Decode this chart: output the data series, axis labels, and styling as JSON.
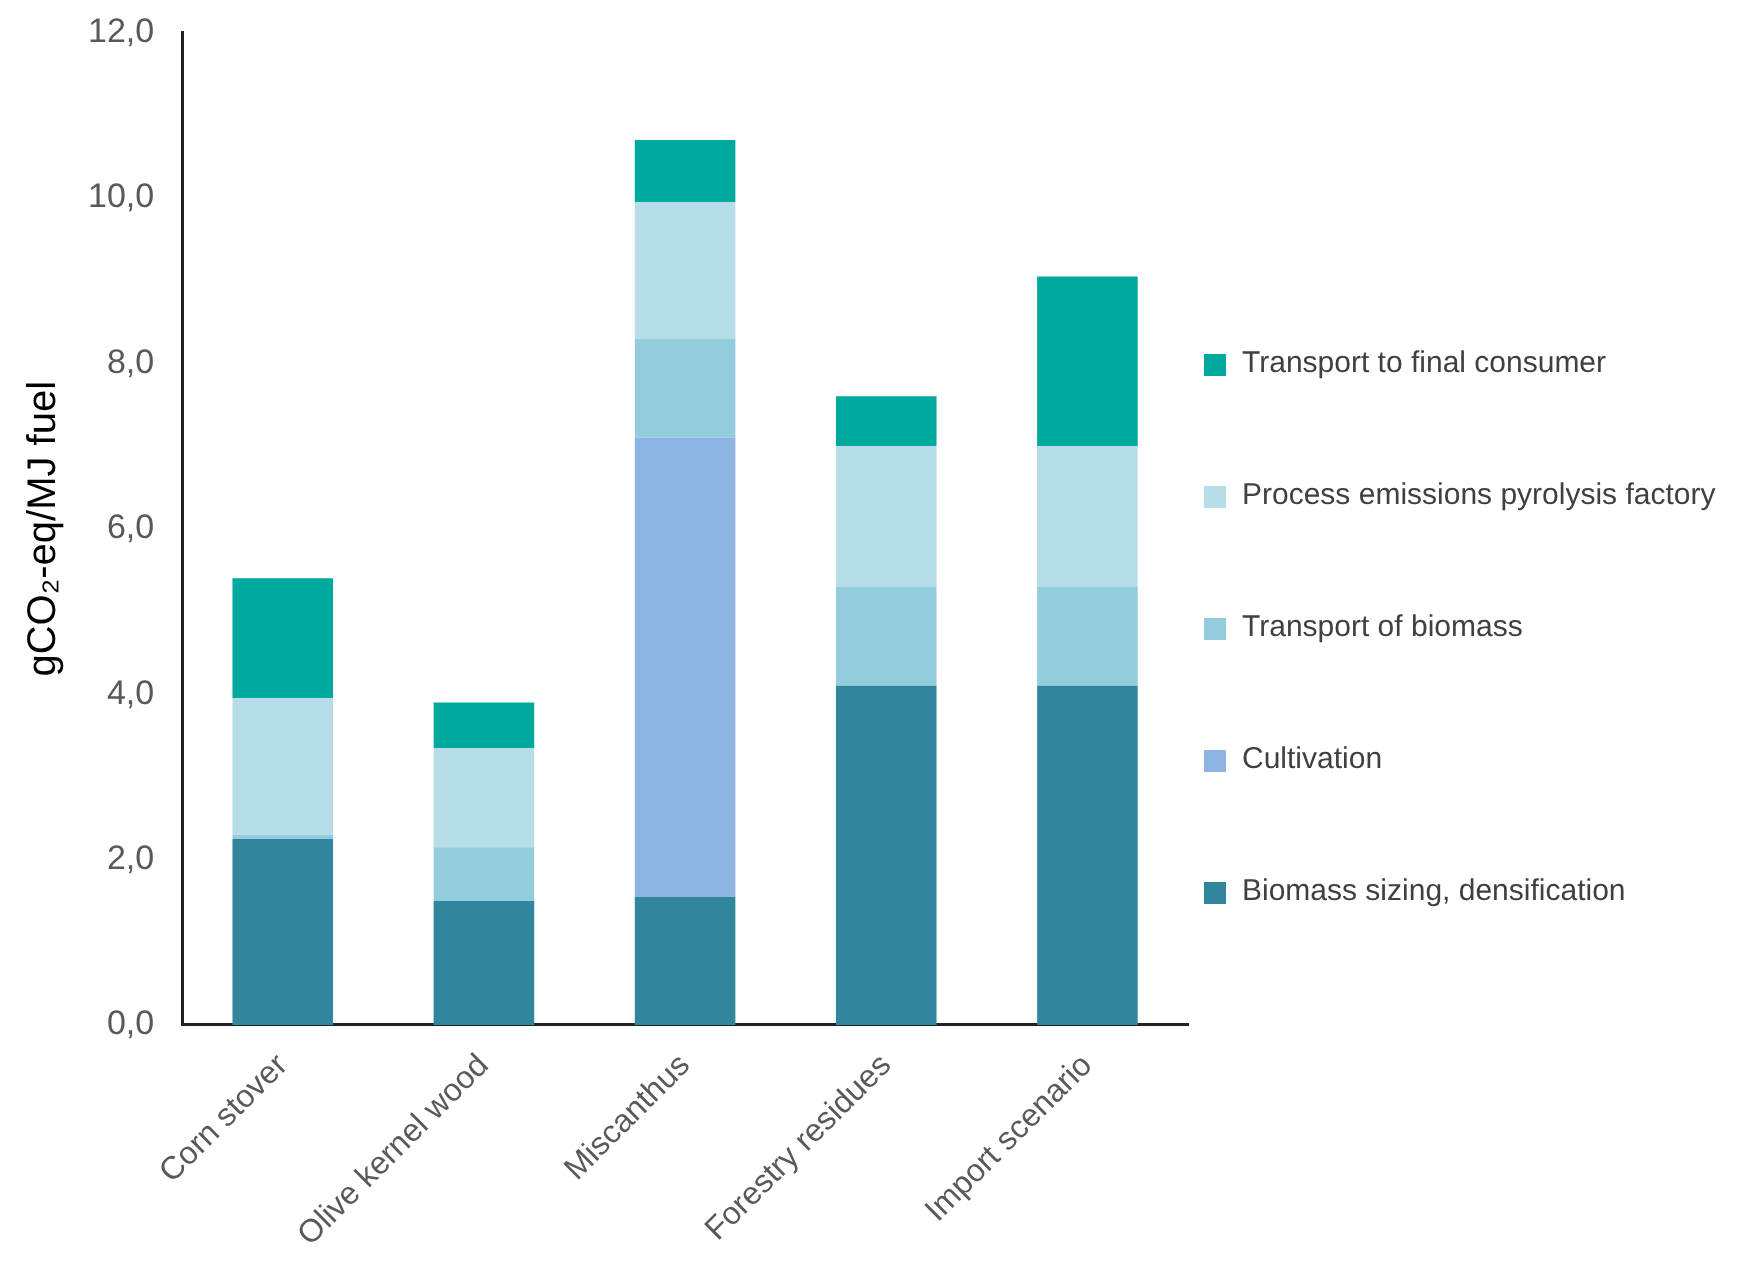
{
  "chart_data": {
    "type": "bar",
    "stacked": true,
    "ylabel": "gCO₂-eq/MJ fuel",
    "categories": [
      "Corn stover",
      "Olive kernel wood",
      "Miscanthus",
      "Forestry residues",
      "Import scenario"
    ],
    "series": [
      {
        "name": "Biomass sizing, densification",
        "color": "#31859c",
        "values": [
          2.25,
          1.5,
          1.55,
          4.1,
          4.1
        ]
      },
      {
        "name": "Cultivation",
        "color": "#8eb4e3",
        "values": [
          0,
          0,
          5.55,
          0,
          0
        ]
      },
      {
        "name": "Transport of biomass",
        "color": "#93ccdc",
        "values": [
          0.05,
          0.65,
          1.2,
          1.2,
          1.2
        ]
      },
      {
        "name": "Process emissions pyrolysis factory",
        "color": "#b7dde8",
        "values": [
          1.65,
          1.2,
          1.65,
          1.7,
          1.7
        ]
      },
      {
        "name": "Transport to final consumer",
        "color": "#00a99d",
        "values": [
          1.45,
          0.55,
          0.75,
          0.6,
          2.05
        ]
      }
    ],
    "ylim": [
      0,
      12
    ],
    "yticks": [
      {
        "value": 0,
        "label": "0,0"
      },
      {
        "value": 2,
        "label": "2,0"
      },
      {
        "value": 4,
        "label": "4,0"
      },
      {
        "value": 6,
        "label": "6,0"
      },
      {
        "value": 8,
        "label": "8,0"
      },
      {
        "value": 10,
        "label": "10,0"
      },
      {
        "value": 12,
        "label": "12,0"
      }
    ],
    "grid": false,
    "legend": "right"
  }
}
